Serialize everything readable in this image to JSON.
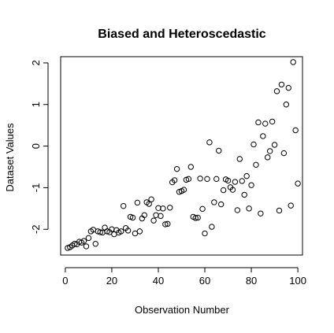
{
  "chart_data": {
    "type": "scatter",
    "title": "Biased and Heteroscedastic",
    "xlabel": "Observation Number",
    "ylabel": "Dataset Values",
    "xlim": [
      -2,
      102
    ],
    "ylim": [
      -2.62,
      2.15
    ],
    "xticks": [
      0,
      20,
      40,
      60,
      80,
      100
    ],
    "yticks": [
      -2,
      -1,
      0,
      1,
      2
    ],
    "grid": false,
    "legend": "none",
    "marker": "open-circle",
    "marker_color": "#000000",
    "x": [
      1,
      2,
      3,
      4,
      5,
      6,
      7,
      8,
      9,
      10,
      11,
      12,
      13,
      14,
      15,
      16,
      17,
      18,
      19,
      20,
      21,
      22,
      23,
      24,
      25,
      26,
      27,
      28,
      29,
      30,
      31,
      32,
      33,
      34,
      35,
      36,
      37,
      38,
      39,
      40,
      41,
      42,
      43,
      44,
      45,
      46,
      47,
      48,
      49,
      50,
      51,
      52,
      53,
      54,
      55,
      56,
      57,
      58,
      59,
      60,
      61,
      62,
      63,
      64,
      65,
      66,
      67,
      68,
      69,
      70,
      71,
      72,
      73,
      74,
      75,
      76,
      77,
      78,
      79,
      80,
      81,
      82,
      83,
      84,
      85,
      86,
      87,
      88,
      89,
      90,
      91,
      92,
      93,
      94,
      95,
      96,
      97,
      98,
      99,
      100
    ],
    "y": [
      -2.45,
      -2.43,
      -2.39,
      -2.35,
      -2.36,
      -2.3,
      -2.32,
      -2.28,
      -2.41,
      -2.21,
      -2.05,
      -2.01,
      -2.35,
      -2.05,
      -2.07,
      -2.08,
      -1.96,
      -2.05,
      -2.07,
      -2.0,
      -2.12,
      -2.02,
      -2.08,
      -2.05,
      -1.44,
      -1.97,
      -2.03,
      -1.7,
      -1.72,
      -2.1,
      -1.36,
      -2.05,
      -1.74,
      -1.66,
      -1.35,
      -1.39,
      -1.28,
      -1.79,
      -1.66,
      -1.49,
      -1.68,
      -1.5,
      -1.88,
      -1.87,
      -1.48,
      -0.87,
      -0.82,
      -0.55,
      -1.1,
      -1.08,
      -1.05,
      -0.81,
      -0.79,
      -0.5,
      -1.7,
      -1.73,
      -1.72,
      -0.78,
      -1.51,
      -2.1,
      -0.79,
      0.09,
      -1.94,
      -1.35,
      -0.79,
      -0.11,
      -1.4,
      -1.06,
      -0.8,
      -0.83,
      -0.99,
      -1.05,
      -0.86,
      -1.54,
      -0.31,
      -0.84,
      -1.17,
      -0.72,
      -1.5,
      -0.94,
      0.04,
      -0.45,
      0.57,
      -1.62,
      0.24,
      0.54,
      -0.27,
      -0.12,
      0.59,
      0.03,
      1.32,
      -1.55,
      1.48,
      -0.17,
      1.0,
      1.4,
      -1.43,
      2.02,
      0.38,
      -0.9
    ]
  }
}
